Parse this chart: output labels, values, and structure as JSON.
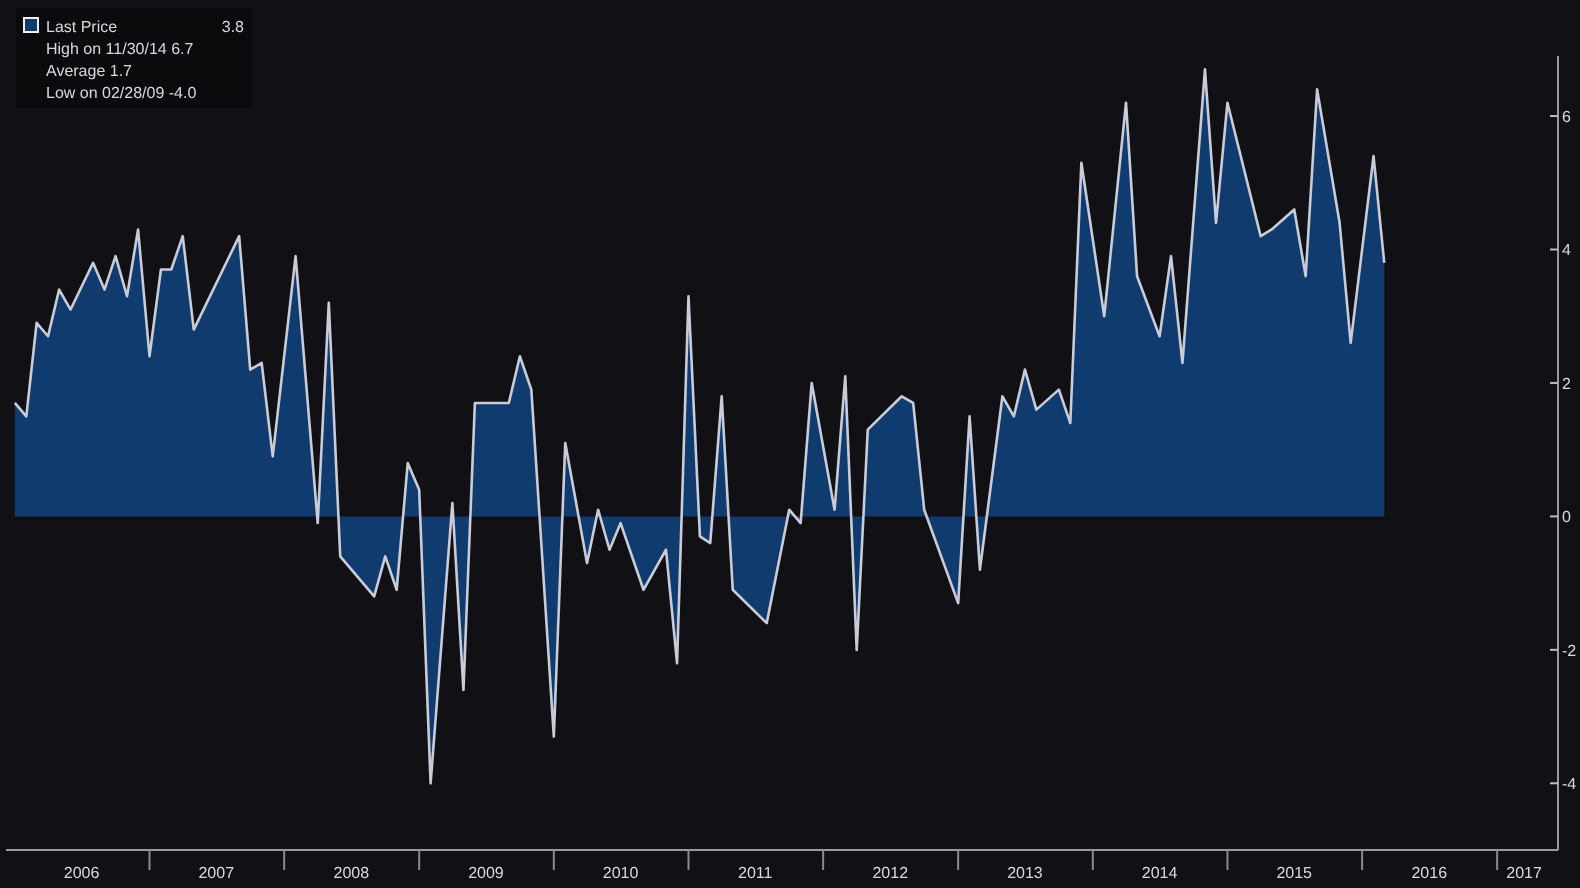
{
  "chart_data": {
    "type": "area",
    "x": [
      "2006-01",
      "2006-02",
      "2006-03",
      "2006-04",
      "2006-05",
      "2006-06",
      "2006-08",
      "2006-09",
      "2006-10",
      "2006-11",
      "2006-12",
      "2007-01",
      "2007-02",
      "2007-03",
      "2007-04",
      "2007-05",
      "2007-09",
      "2007-10",
      "2007-11",
      "2007-12",
      "2008-02",
      "2008-04",
      "2008-05",
      "2008-06",
      "2008-09",
      "2008-10",
      "2008-11",
      "2008-12",
      "2009-01",
      "2009-02",
      "2009-04",
      "2009-05",
      "2009-06",
      "2009-09",
      "2009-10",
      "2009-11",
      "2010-01",
      "2010-02",
      "2010-04",
      "2010-05",
      "2010-06",
      "2010-07",
      "2010-09",
      "2010-11",
      "2010-12",
      "2011-01",
      "2011-02",
      "2011-03",
      "2011-04",
      "2011-05",
      "2011-08",
      "2011-10",
      "2011-11",
      "2011-12",
      "2012-02",
      "2012-03",
      "2012-04",
      "2012-05",
      "2012-08",
      "2012-09",
      "2012-10",
      "2013-01",
      "2013-02",
      "2013-03",
      "2013-05",
      "2013-06",
      "2013-07",
      "2013-08",
      "2013-10",
      "2013-11",
      "2013-12",
      "2014-02",
      "2014-04",
      "2014-05",
      "2014-07",
      "2014-08",
      "2014-09",
      "2014-11",
      "2014-12",
      "2015-01",
      "2015-04",
      "2015-05",
      "2015-07",
      "2015-08",
      "2015-09",
      "2015-11",
      "2015-12",
      "2016-02",
      "2016-03"
    ],
    "series": [
      {
        "name": "Last Price",
        "color": "#0f3b6e",
        "values": [
          1.7,
          1.5,
          2.9,
          2.7,
          3.4,
          3.1,
          3.8,
          3.4,
          3.9,
          3.3,
          4.3,
          2.4,
          3.7,
          3.7,
          4.2,
          2.8,
          4.2,
          2.2,
          2.3,
          0.9,
          3.9,
          -0.1,
          3.2,
          -0.6,
          -1.2,
          -0.6,
          -1.1,
          0.8,
          0.4,
          -4.0,
          0.2,
          -2.6,
          1.7,
          1.7,
          2.4,
          1.9,
          -3.3,
          1.1,
          -0.7,
          0.1,
          -0.5,
          -0.1,
          -1.1,
          -0.5,
          -2.2,
          3.3,
          -0.3,
          -0.4,
          1.8,
          -1.1,
          -1.6,
          0.1,
          -0.1,
          2.0,
          0.1,
          2.1,
          -2.0,
          1.3,
          1.8,
          1.7,
          0.1,
          -1.3,
          1.5,
          -0.8,
          1.8,
          1.5,
          2.2,
          1.6,
          1.9,
          1.4,
          5.3,
          3.0,
          6.2,
          3.6,
          2.7,
          3.9,
          2.3,
          6.7,
          4.4,
          6.2,
          4.2,
          4.3,
          4.6,
          3.6,
          6.4,
          4.4,
          2.6,
          5.4,
          3.8
        ]
      }
    ],
    "annotations": [
      "3.8",
      "High on 11/30/14 6.7",
      "Average 1.7",
      "Low on 02/28/09 -4.0"
    ],
    "xlim": [
      "2005-12-08",
      "2017-06-15"
    ],
    "xticks": [
      {
        "value": "2006-07",
        "label": "2006"
      },
      {
        "value": "2007",
        "label": null
      },
      {
        "value": "2007-07",
        "label": "2007"
      },
      {
        "value": "2008",
        "label": null
      },
      {
        "value": "2008-07",
        "label": "2008"
      },
      {
        "value": "2009",
        "label": null
      },
      {
        "value": "2009-07",
        "label": "2009"
      },
      {
        "value": "2010",
        "label": null
      },
      {
        "value": "2010-07",
        "label": "2010"
      },
      {
        "value": "2011",
        "label": null
      },
      {
        "value": "2011-07",
        "label": "2011"
      },
      {
        "value": "2012",
        "label": null
      },
      {
        "value": "2012-07",
        "label": "2012"
      },
      {
        "value": "2013",
        "label": null
      },
      {
        "value": "2013-07",
        "label": "2013"
      },
      {
        "value": "2014",
        "label": null
      },
      {
        "value": "2014-07",
        "label": "2014"
      },
      {
        "value": "2015",
        "label": null
      },
      {
        "value": "2015-07",
        "label": "2015"
      },
      {
        "value": "2016",
        "label": null
      },
      {
        "value": "2016-07",
        "label": "2016"
      },
      {
        "value": "2017",
        "label": null
      },
      {
        "value": "2017-03-15",
        "label": "2017"
      }
    ],
    "ylim": [
      -5,
      6.9
    ],
    "yticks": [
      -4,
      -2,
      0,
      2,
      4,
      6
    ],
    "legend": "top left"
  }
}
